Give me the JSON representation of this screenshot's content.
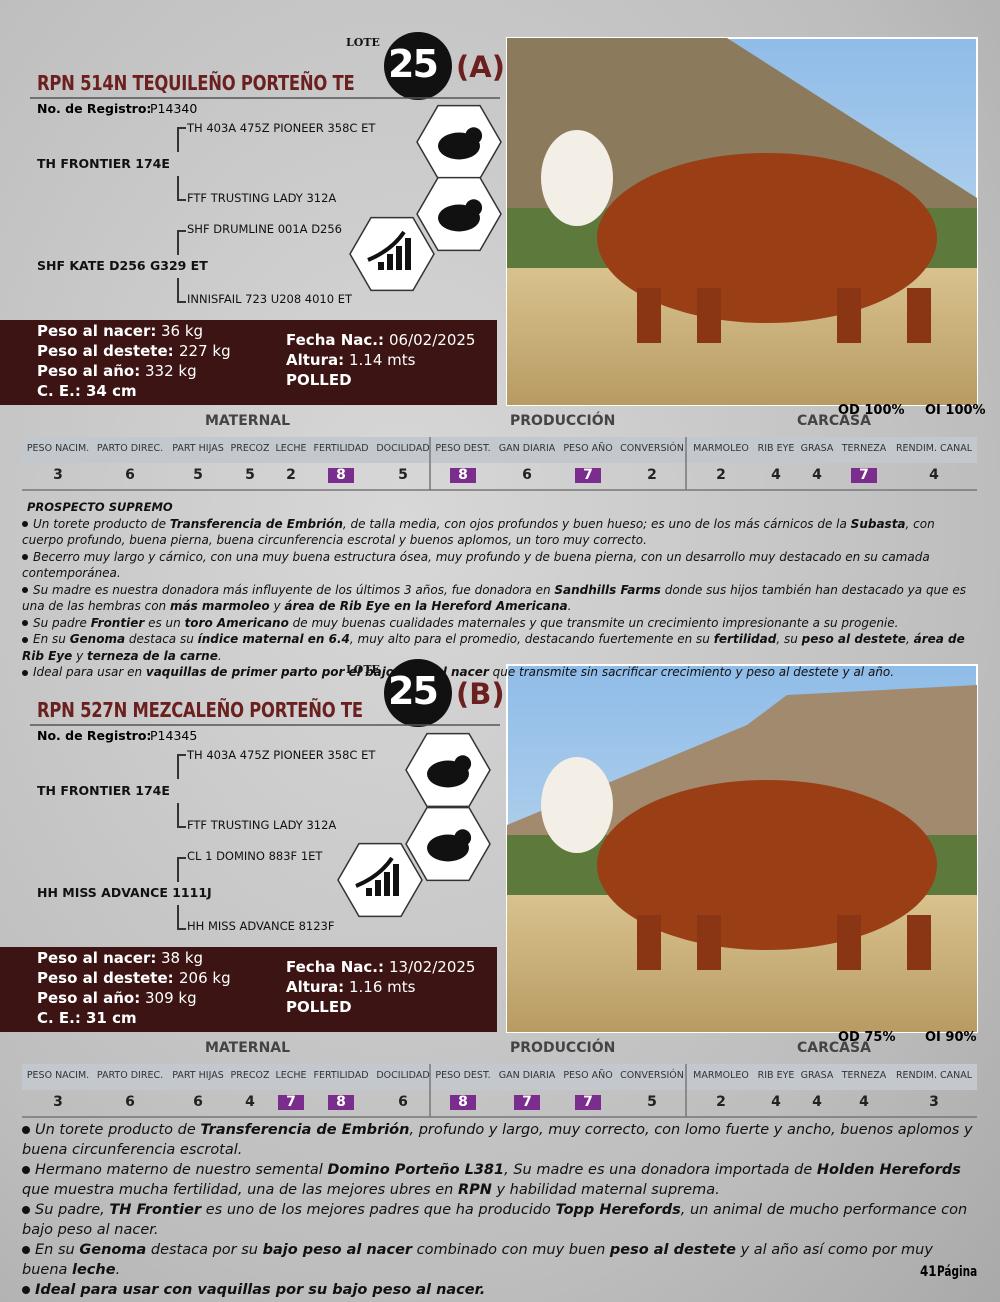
{
  "lots": [
    {
      "lote_label": "LOTE",
      "lote_number": "25",
      "lote_letter": "(A)",
      "name": "RPN 514N TEQUILEÑO PORTEÑO TE",
      "registro_label": "No. de Registro:",
      "registro": "P14340",
      "pedigree": {
        "sire": "TH FRONTIER 174E",
        "sire_sire": "TH 403A 475Z PIONEER 358C ET",
        "sire_dam": "FTF TRUSTING LADY 312A",
        "dam": "SHF KATE D256 G329 ET",
        "dam_sire": "SHF DRUMLINE 001A D256",
        "dam_dam": "INNISFAIL 723 U208 4010 ET"
      },
      "stats_left": [
        {
          "label": "Peso al nacer:",
          "value": "36 kg"
        },
        {
          "label": "Peso al destete:",
          "value": "227 kg"
        },
        {
          "label": "Peso al año:",
          "value": "332 kg"
        },
        {
          "label": "C. E.:",
          "value": "34 cm"
        }
      ],
      "stats_right": [
        {
          "label": "Fecha Nac.:",
          "value": "06/02/2025"
        },
        {
          "label": "Altura:",
          "value": "1.14 mts"
        },
        {
          "label": "POLLED"
        }
      ],
      "od": "OD 100%",
      "oi": "OI 100%",
      "sections": [
        "MATERNAL",
        "PRODUCCIÓN",
        "CARCASA"
      ],
      "columns": [
        "PESO NACIM.",
        "PARTO DIREC.",
        "PART HIJAS",
        "PRECOZ",
        "LECHE",
        "FERTILIDAD",
        "DOCILIDAD",
        "PESO DEST.",
        "GAN DIARIA",
        "PESO AÑO",
        "CONVERSIÓN",
        "MARMOLEO",
        "RIB EYE",
        "GRASA",
        "TERNEZA",
        "RENDIM. CANAL"
      ],
      "values": [
        3,
        6,
        5,
        5,
        2,
        8,
        5,
        8,
        6,
        7,
        2,
        2,
        4,
        4,
        7,
        4
      ],
      "highlight": [
        false,
        false,
        false,
        false,
        false,
        true,
        false,
        true,
        false,
        true,
        false,
        false,
        false,
        false,
        true,
        false
      ],
      "heading": "PROSPECTO SUPREMO",
      "paragraphs": [
        [
          "Un torete producto de ",
          {
            "text": "Transferencia de Embrión",
            "bold": true
          },
          ", de talla media, con ojos profundos y buen hueso; es uno de los más cárnicos de la ",
          {
            "text": "Subasta",
            "bold": true
          },
          ", con cuerpo profundo, buena pierna, buena circunferencia escrotal y buenos aplomos, un toro muy correcto."
        ],
        [
          "Becerro muy largo y cárnico, con una muy buena estructura ósea, muy profundo y de buena pierna, con un desarrollo muy destacado en su camada contemporánea."
        ],
        [
          "Su madre es nuestra donadora más influyente de los últimos 3 años, fue donadora en ",
          {
            "text": "Sandhills Farms",
            "bold": true
          },
          " donde sus hijos también han destacado ya que es una de las hembras con ",
          {
            "text": "más marmoleo",
            "bold": true
          },
          " y ",
          {
            "text": "área de Rib Eye en la Hereford Americana",
            "bold": true
          },
          "."
        ],
        [
          "Su padre ",
          {
            "text": "Frontier",
            "bold": true
          },
          " es un ",
          {
            "text": "toro Americano",
            "bold": true
          },
          " de muy buenas cualidades maternales y que transmite un crecimiento impresionante a su progenie."
        ],
        [
          "En su ",
          {
            "text": "Genoma",
            "bold": true
          },
          " destaca su ",
          {
            "text": "índice maternal en 6.4",
            "bold": true
          },
          ", muy alto para el promedio, destacando fuertemente en su ",
          {
            "text": "fertilidad",
            "bold": true
          },
          ", su ",
          {
            "text": "peso al destete",
            "bold": true
          },
          ", ",
          {
            "text": "área de Rib Eye",
            "bold": true
          },
          " y ",
          {
            "text": "terneza de la carne",
            "bold": true
          },
          "."
        ],
        [
          "Ideal para usar en ",
          {
            "text": "vaquillas de primer parto por el bajo peso al nacer",
            "bold": true
          },
          " que transmite sin sacrificar crecimiento y peso al destete y al año."
        ]
      ]
    },
    {
      "lote_label": "LOTE",
      "lote_number": "25",
      "lote_letter": "(B)",
      "name": "RPN 527N MEZCALEÑO PORTEÑO TE",
      "registro_label": "No. de Registro:",
      "registro": "P14345",
      "pedigree": {
        "sire": "TH FRONTIER 174E",
        "sire_sire": "TH 403A 475Z PIONEER 358C ET",
        "sire_dam": "FTF TRUSTING LADY 312A",
        "dam": "HH MISS ADVANCE 1111J",
        "dam_sire": "CL 1 DOMINO 883F 1ET",
        "dam_dam": "HH MISS ADVANCE 8123F"
      },
      "stats_left": [
        {
          "label": "Peso al nacer:",
          "value": "38 kg"
        },
        {
          "label": "Peso al destete:",
          "value": "206 kg"
        },
        {
          "label": "Peso al año:",
          "value": "309 kg"
        },
        {
          "label": "C. E.:",
          "value": "31 cm"
        }
      ],
      "stats_right": [
        {
          "label": "Fecha Nac.:",
          "value": "13/02/2025"
        },
        {
          "label": "Altura:",
          "value": "1.16 mts"
        },
        {
          "label": "POLLED"
        }
      ],
      "od": "OD 75%",
      "oi": "OI 90%",
      "sections": [
        "MATERNAL",
        "PRODUCCIÓN",
        "CARCASA"
      ],
      "columns": [
        "PESO NACIM.",
        "PARTO DIREC.",
        "PART HIJAS",
        "PRECOZ",
        "LECHE",
        "FERTILIDAD",
        "DOCILIDAD",
        "PESO DEST.",
        "GAN DIARIA",
        "PESO AÑO",
        "CONVERSIÓN",
        "MARMOLEO",
        "RIB EYE",
        "GRASA",
        "TERNEZA",
        "RENDIM. CANAL"
      ],
      "values": [
        3,
        6,
        6,
        4,
        7,
        8,
        6,
        8,
        7,
        7,
        5,
        2,
        4,
        4,
        4,
        3
      ],
      "highlight": [
        false,
        false,
        false,
        false,
        true,
        true,
        false,
        true,
        true,
        true,
        false,
        false,
        false,
        false,
        false,
        false
      ],
      "paragraphs": [
        [
          "Un torete producto de ",
          {
            "text": "Transferencia de Embrión",
            "bold": true
          },
          ", profundo y largo, muy correcto, con lomo fuerte y ancho, buenos aplomos y buena circunferencia escrotal."
        ],
        [
          "Hermano materno de nuestro semental ",
          {
            "text": "Domino Porteño L381",
            "bold": true
          },
          ", Su madre es una donadora importada de ",
          {
            "text": "Holden Herefords",
            "bold": true
          },
          " que muestra mucha fertilidad, una de las mejores ubres en ",
          {
            "text": "RPN",
            "bold": true
          },
          " y habilidad maternal suprema."
        ],
        [
          "Su padre, ",
          {
            "text": "TH Frontier",
            "bold": true
          },
          " es uno de los mejores padres que ha producido ",
          {
            "text": "Topp Herefords",
            "bold": true
          },
          ", un animal de mucho performance con bajo peso al nacer."
        ],
        [
          "En su ",
          {
            "text": "Genoma",
            "bold": true
          },
          " destaca por su ",
          {
            "text": "bajo peso al nacer",
            "bold": true
          },
          " combinado con muy buen ",
          {
            "text": "peso al destete",
            "bold": true
          },
          " y al año así como por muy buena ",
          {
            "text": "leche",
            "bold": true
          },
          "."
        ],
        [
          {
            "text": "Ideal para usar con vaquillas por su bajo peso al nacer.",
            "bold": true
          }
        ]
      ]
    }
  ],
  "footer": {
    "page_number": "41",
    "page_label": "Página"
  }
}
